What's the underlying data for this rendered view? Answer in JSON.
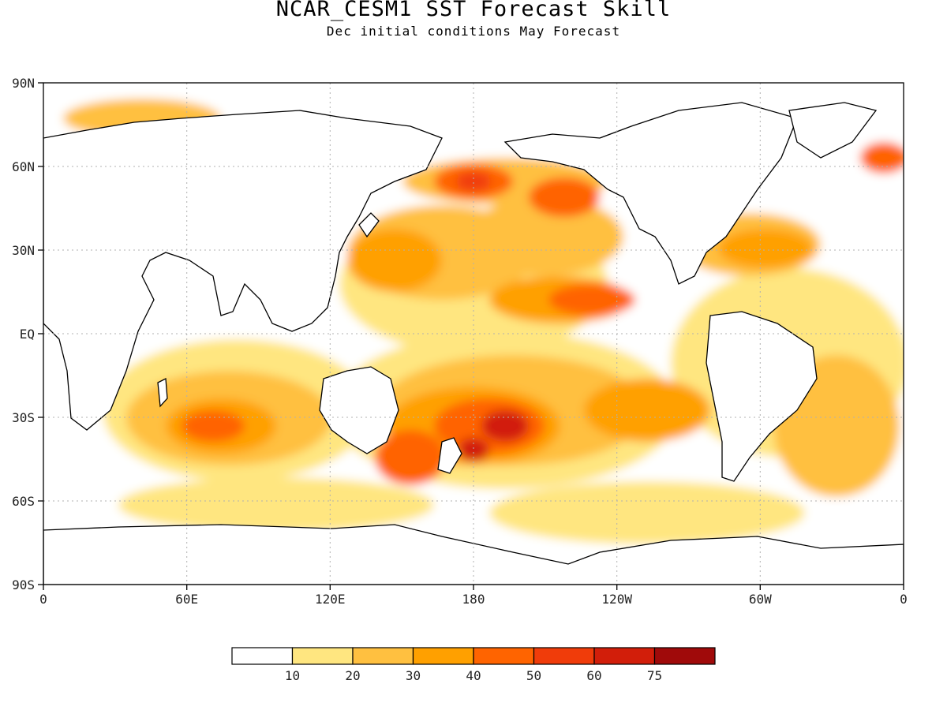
{
  "title": "NCAR_CESM1 SST Forecast Skill",
  "subtitle": "Dec initial conditions  May Forecast",
  "axes": {
    "x_ticks": [
      "0",
      "60E",
      "120E",
      "180",
      "120W",
      "60W",
      "0"
    ],
    "y_ticks": [
      "90N",
      "60N",
      "30N",
      "EQ",
      "30S",
      "60S",
      "90S"
    ]
  },
  "colorbar": {
    "labels": [
      "10",
      "20",
      "30",
      "40",
      "50",
      "60",
      "75"
    ],
    "colors": [
      "#ffffff",
      "#ffe680",
      "#ffc040",
      "#ffa000",
      "#ff6400",
      "#f03c0a",
      "#d21e0a",
      "#a00a0a"
    ]
  },
  "colors": {
    "land": "#ffffff",
    "coast": "#000000",
    "grid": "#b0b0b0"
  }
}
